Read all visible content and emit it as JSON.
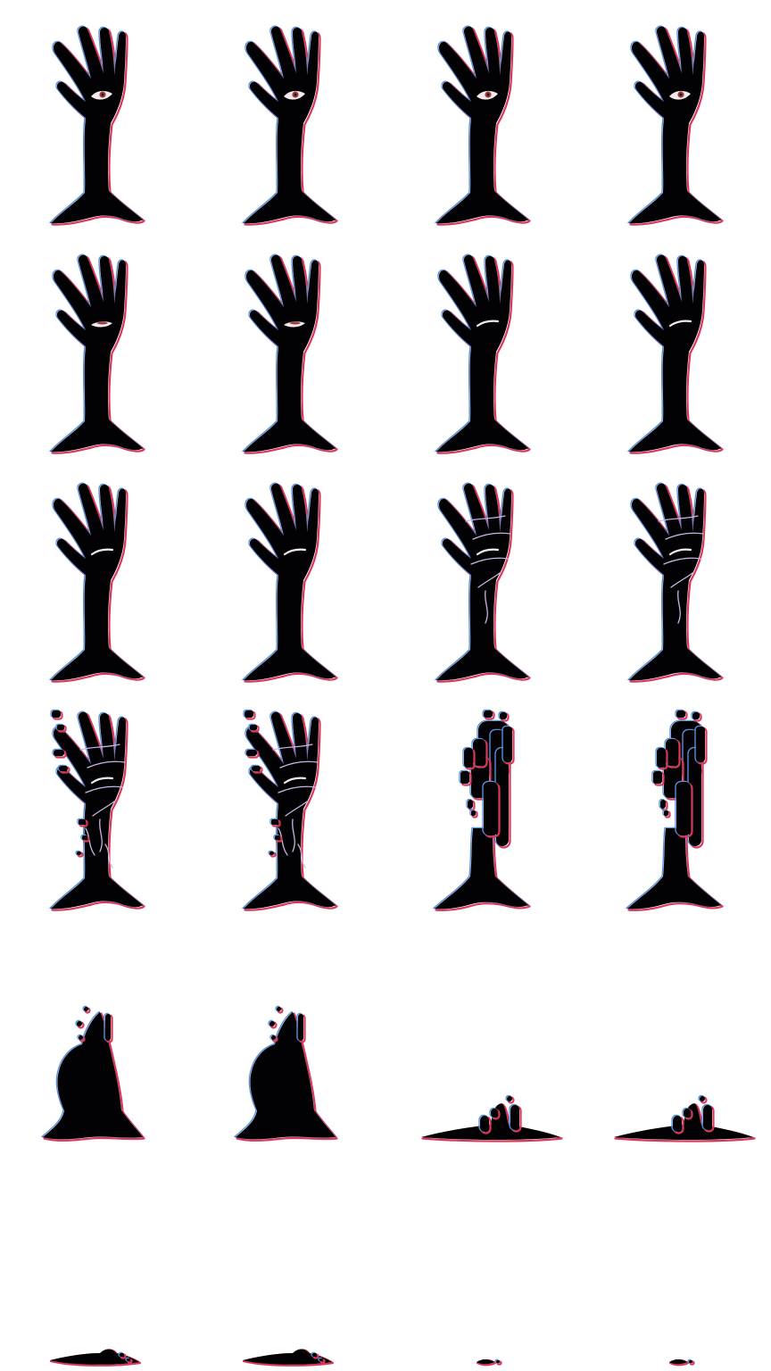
{
  "sprite_sheet": {
    "columns": 4,
    "rows": 6,
    "palette": {
      "silhouette": "#020204",
      "rim_red": "#d9385a",
      "rim_blue": "#5a8fd8",
      "eye_white": "#f4e9ec",
      "iris": "#a13a3a",
      "crack": "#c9b6e6"
    },
    "frames": [
      {
        "stage": "hand",
        "eye": "open"
      },
      {
        "stage": "hand",
        "eye": "open"
      },
      {
        "stage": "hand",
        "eye": "open"
      },
      {
        "stage": "hand",
        "eye": "open"
      },
      {
        "stage": "hand",
        "eye": "half"
      },
      {
        "stage": "hand",
        "eye": "half"
      },
      {
        "stage": "hand",
        "eye": "closed"
      },
      {
        "stage": "hand",
        "eye": "closed"
      },
      {
        "stage": "hand",
        "eye": "closed"
      },
      {
        "stage": "hand",
        "eye": "closed"
      },
      {
        "stage": "cracked",
        "eye": "closed"
      },
      {
        "stage": "cracked",
        "eye": "closed"
      },
      {
        "stage": "crumbling",
        "eye": "closed"
      },
      {
        "stage": "crumbling",
        "eye": "closed"
      },
      {
        "stage": "shattered",
        "eye": "none"
      },
      {
        "stage": "shattered",
        "eye": "none"
      },
      {
        "stage": "melting",
        "eye": "none"
      },
      {
        "stage": "melting",
        "eye": "none"
      },
      {
        "stage": "mound",
        "eye": "none"
      },
      {
        "stage": "mound",
        "eye": "none"
      },
      {
        "stage": "puddle",
        "eye": "none"
      },
      {
        "stage": "puddle",
        "eye": "none"
      },
      {
        "stage": "speck",
        "eye": "none"
      },
      {
        "stage": "speck",
        "eye": "none"
      }
    ]
  }
}
